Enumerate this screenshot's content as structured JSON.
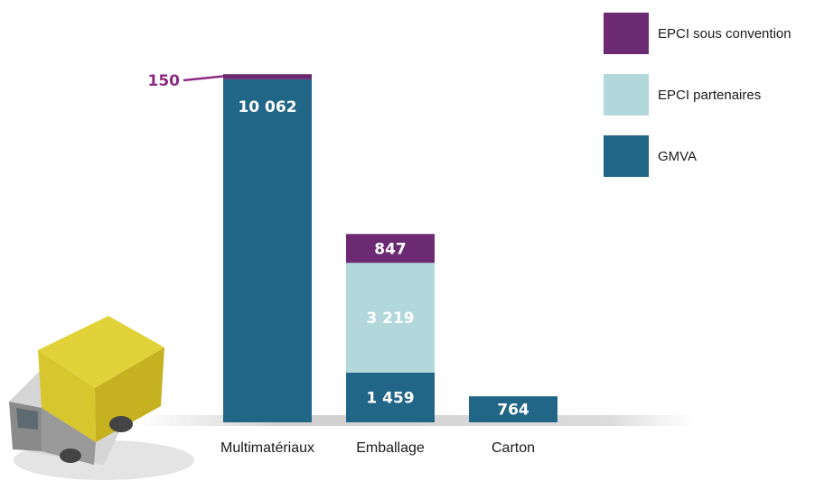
{
  "chart_data": {
    "type": "bar",
    "stacked": true,
    "categories": [
      "Multimatériaux",
      "Emballage",
      "Carton"
    ],
    "series": [
      {
        "name": "GMVA",
        "color": "#226687",
        "values": [
          10062,
          1459,
          764
        ],
        "labels": [
          "10 062",
          "1 459",
          "764"
        ]
      },
      {
        "name": "EPCI partenaires",
        "color": "#b2d8dc",
        "values": [
          0,
          3219,
          0
        ],
        "labels": [
          "",
          "3 219",
          ""
        ]
      },
      {
        "name": "EPCI sous convention",
        "color": "#6b2a71",
        "values": [
          150,
          847,
          0
        ],
        "labels": [
          "150",
          "847",
          ""
        ]
      }
    ],
    "legend": {
      "placement": "top-right",
      "order": [
        "EPCI sous convention",
        "EPCI partenaires",
        "GMVA"
      ]
    },
    "callout": {
      "series": "EPCI sous convention",
      "category": "Multimatériaux",
      "label": "150",
      "color": "#8c2b80"
    },
    "axes": {
      "y_visible": false,
      "ylim": [
        0,
        10212
      ]
    },
    "grid": false,
    "decoration": "truck-icon"
  }
}
